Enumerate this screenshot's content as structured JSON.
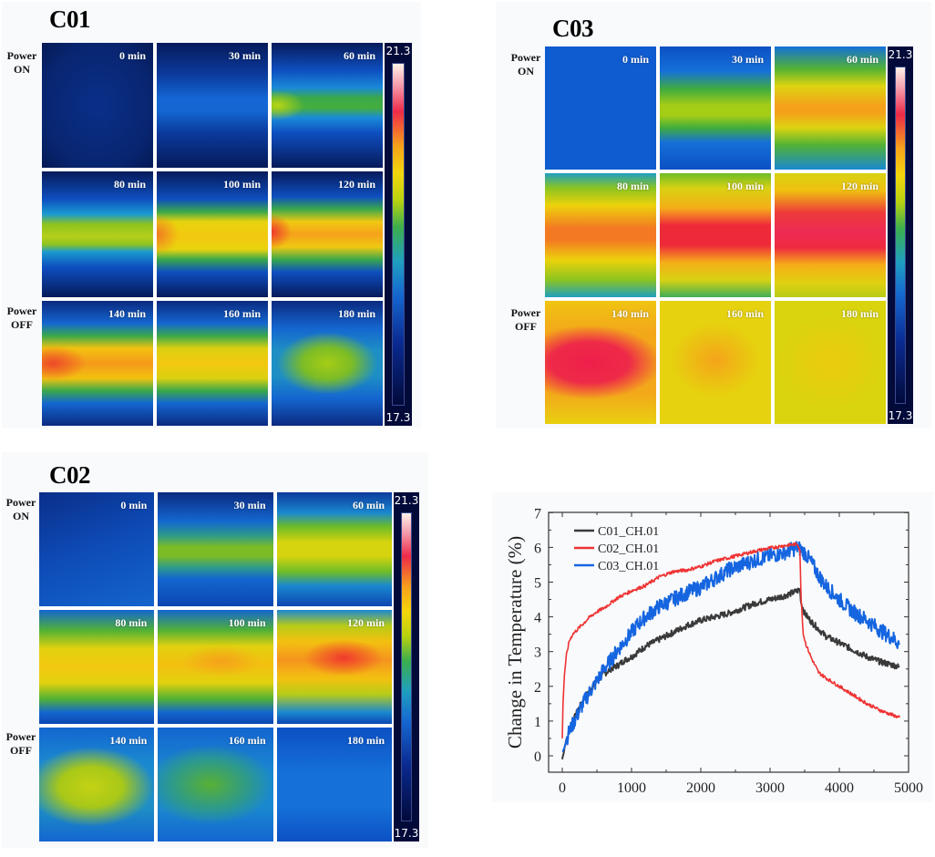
{
  "figure": {
    "panels": [
      {
        "id": "c01",
        "title": "C01",
        "row_labels": [
          {
            "line1": "Power",
            "line2": "ON"
          },
          {
            "line1": "",
            "line2": ""
          },
          {
            "line1": "Power",
            "line2": "OFF"
          }
        ],
        "tiles": [
          "0 min",
          "30 min",
          "60 min",
          "80 min",
          "100 min",
          "120 min",
          "140 min",
          "160 min",
          "180 min"
        ],
        "colorbar": {
          "max": "21.3",
          "min": "17.3"
        }
      },
      {
        "id": "c03",
        "title": "C03",
        "row_labels": [
          {
            "line1": "Power",
            "line2": "ON"
          },
          {
            "line1": "",
            "line2": ""
          },
          {
            "line1": "Power",
            "line2": "OFF"
          }
        ],
        "tiles": [
          "0 min",
          "30 min",
          "60 min",
          "80 min",
          "100 min",
          "120 min",
          "140 min",
          "160 min",
          "180 min"
        ],
        "colorbar": {
          "max": "21.3",
          "min": "17.3"
        }
      },
      {
        "id": "c02",
        "title": "C02",
        "row_labels": [
          {
            "line1": "Power",
            "line2": "ON"
          },
          {
            "line1": "",
            "line2": ""
          },
          {
            "line1": "Power",
            "line2": "OFF"
          }
        ],
        "tiles": [
          "0 min",
          "30 min",
          "60 min",
          "80 min",
          "100 min",
          "120 min",
          "140 min",
          "160 min",
          "180 min"
        ],
        "colorbar": {
          "max": "21.3",
          "min": "17.3"
        }
      }
    ]
  },
  "chart_data": {
    "type": "line",
    "title": "",
    "xlabel": "",
    "ylabel": "Change in Temperature (%)",
    "xlim": [
      -200,
      5000
    ],
    "ylim": [
      -0.5,
      7
    ],
    "xticks": [
      0,
      1000,
      2000,
      3000,
      4000,
      5000
    ],
    "yticks": [
      0,
      1,
      2,
      3,
      4,
      5,
      6,
      7
    ],
    "grid": false,
    "legend_position": "top-left",
    "series": [
      {
        "name": "C01_CH.01",
        "color": "#3a3a3a",
        "x": [
          0,
          50,
          100,
          200,
          300,
          400,
          500,
          600,
          700,
          800,
          900,
          1000,
          1100,
          1200,
          1300,
          1400,
          1500,
          1600,
          1800,
          2000,
          2200,
          2400,
          2600,
          2800,
          3000,
          3200,
          3400,
          3430,
          3450,
          3500,
          3600,
          3700,
          3800,
          4000,
          4200,
          4400,
          4600,
          4800,
          4870
        ],
        "y": [
          -0.1,
          0.4,
          0.7,
          1.2,
          1.6,
          1.9,
          2.15,
          2.35,
          2.5,
          2.6,
          2.75,
          2.85,
          3.0,
          3.15,
          3.25,
          3.35,
          3.45,
          3.55,
          3.75,
          3.9,
          4.0,
          4.1,
          4.25,
          4.4,
          4.5,
          4.6,
          4.75,
          4.8,
          4.4,
          4.1,
          3.85,
          3.65,
          3.45,
          3.25,
          3.05,
          2.85,
          2.7,
          2.6,
          2.55
        ]
      },
      {
        "name": "C02_CH.01",
        "color": "#ee3333",
        "x": [
          0,
          10,
          30,
          60,
          100,
          150,
          200,
          300,
          400,
          500,
          600,
          800,
          1000,
          1200,
          1400,
          1600,
          1800,
          2000,
          2200,
          2400,
          2600,
          2800,
          3000,
          3200,
          3400,
          3430,
          3450,
          3480,
          3520,
          3600,
          3700,
          3800,
          4000,
          4200,
          4400,
          4600,
          4800,
          4870
        ],
        "y": [
          0.5,
          1.5,
          2.3,
          2.9,
          3.3,
          3.5,
          3.6,
          3.8,
          4.0,
          4.15,
          4.25,
          4.55,
          4.75,
          4.9,
          5.15,
          5.3,
          5.35,
          5.45,
          5.6,
          5.7,
          5.8,
          5.9,
          5.98,
          6.05,
          6.1,
          5.9,
          4.5,
          3.5,
          3.2,
          2.8,
          2.4,
          2.25,
          2.0,
          1.75,
          1.5,
          1.3,
          1.15,
          1.1
        ]
      },
      {
        "name": "C03_CH.01",
        "color": "#1565e0",
        "x": [
          0,
          50,
          100,
          200,
          300,
          400,
          500,
          600,
          700,
          800,
          900,
          1000,
          1100,
          1200,
          1400,
          1600,
          1800,
          2000,
          2200,
          2400,
          2600,
          2800,
          3000,
          3200,
          3400,
          3500,
          3600,
          3700,
          3800,
          4000,
          4200,
          4400,
          4600,
          4800,
          4870
        ],
        "y": [
          0.1,
          0.4,
          0.7,
          1.1,
          1.5,
          1.85,
          2.15,
          2.5,
          2.75,
          3.05,
          3.3,
          3.55,
          3.8,
          4.0,
          4.3,
          4.5,
          4.7,
          4.85,
          5.1,
          5.35,
          5.5,
          5.65,
          5.75,
          5.85,
          6.0,
          5.85,
          5.55,
          5.2,
          4.9,
          4.5,
          4.15,
          3.9,
          3.6,
          3.35,
          3.2
        ]
      }
    ]
  }
}
